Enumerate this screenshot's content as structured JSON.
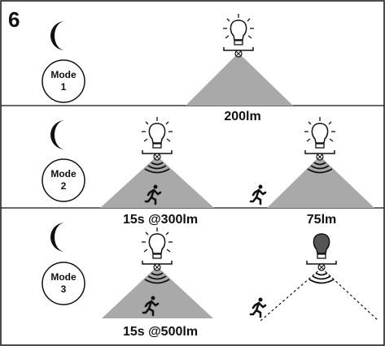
{
  "figure_number": "6",
  "modes": [
    {
      "label": "Mode",
      "number": "1",
      "outputs": [
        "200lm"
      ]
    },
    {
      "label": "Mode",
      "number": "2",
      "outputs": [
        "15s @300lm",
        "75lm"
      ]
    },
    {
      "label": "Mode",
      "number": "3",
      "outputs": [
        "15s @500lm"
      ]
    }
  ]
}
